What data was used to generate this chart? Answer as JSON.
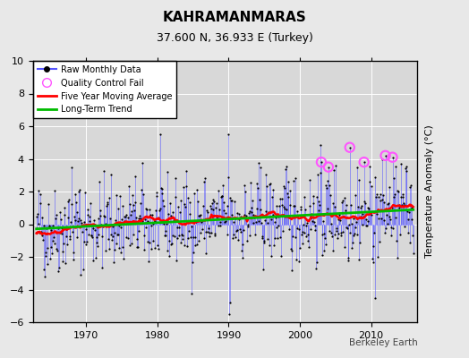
{
  "title": "KAHRAMANMARAS",
  "subtitle": "37.600 N, 36.933 E (Turkey)",
  "ylabel": "Temperature Anomaly (°C)",
  "watermark": "Berkeley Earth",
  "ylim": [
    -6,
    10
  ],
  "yticks": [
    -6,
    -4,
    -2,
    0,
    2,
    4,
    6,
    8,
    10
  ],
  "xlim": [
    1962.5,
    2016.5
  ],
  "xticks": [
    1970,
    1980,
    1990,
    2000,
    2010
  ],
  "bg_color": "#e8e8e8",
  "plot_bg_color": "#d8d8d8",
  "grid_color": "#ffffff",
  "raw_line_color": "#5555ff",
  "raw_dot_color": "#000000",
  "ma_color": "#ff0000",
  "trend_color": "#00bb00",
  "qc_color": "#ff55ff",
  "seed": 42,
  "n_years": 53,
  "start_year": 1963,
  "trend_slope": 0.02,
  "trend_intercept": -0.25
}
